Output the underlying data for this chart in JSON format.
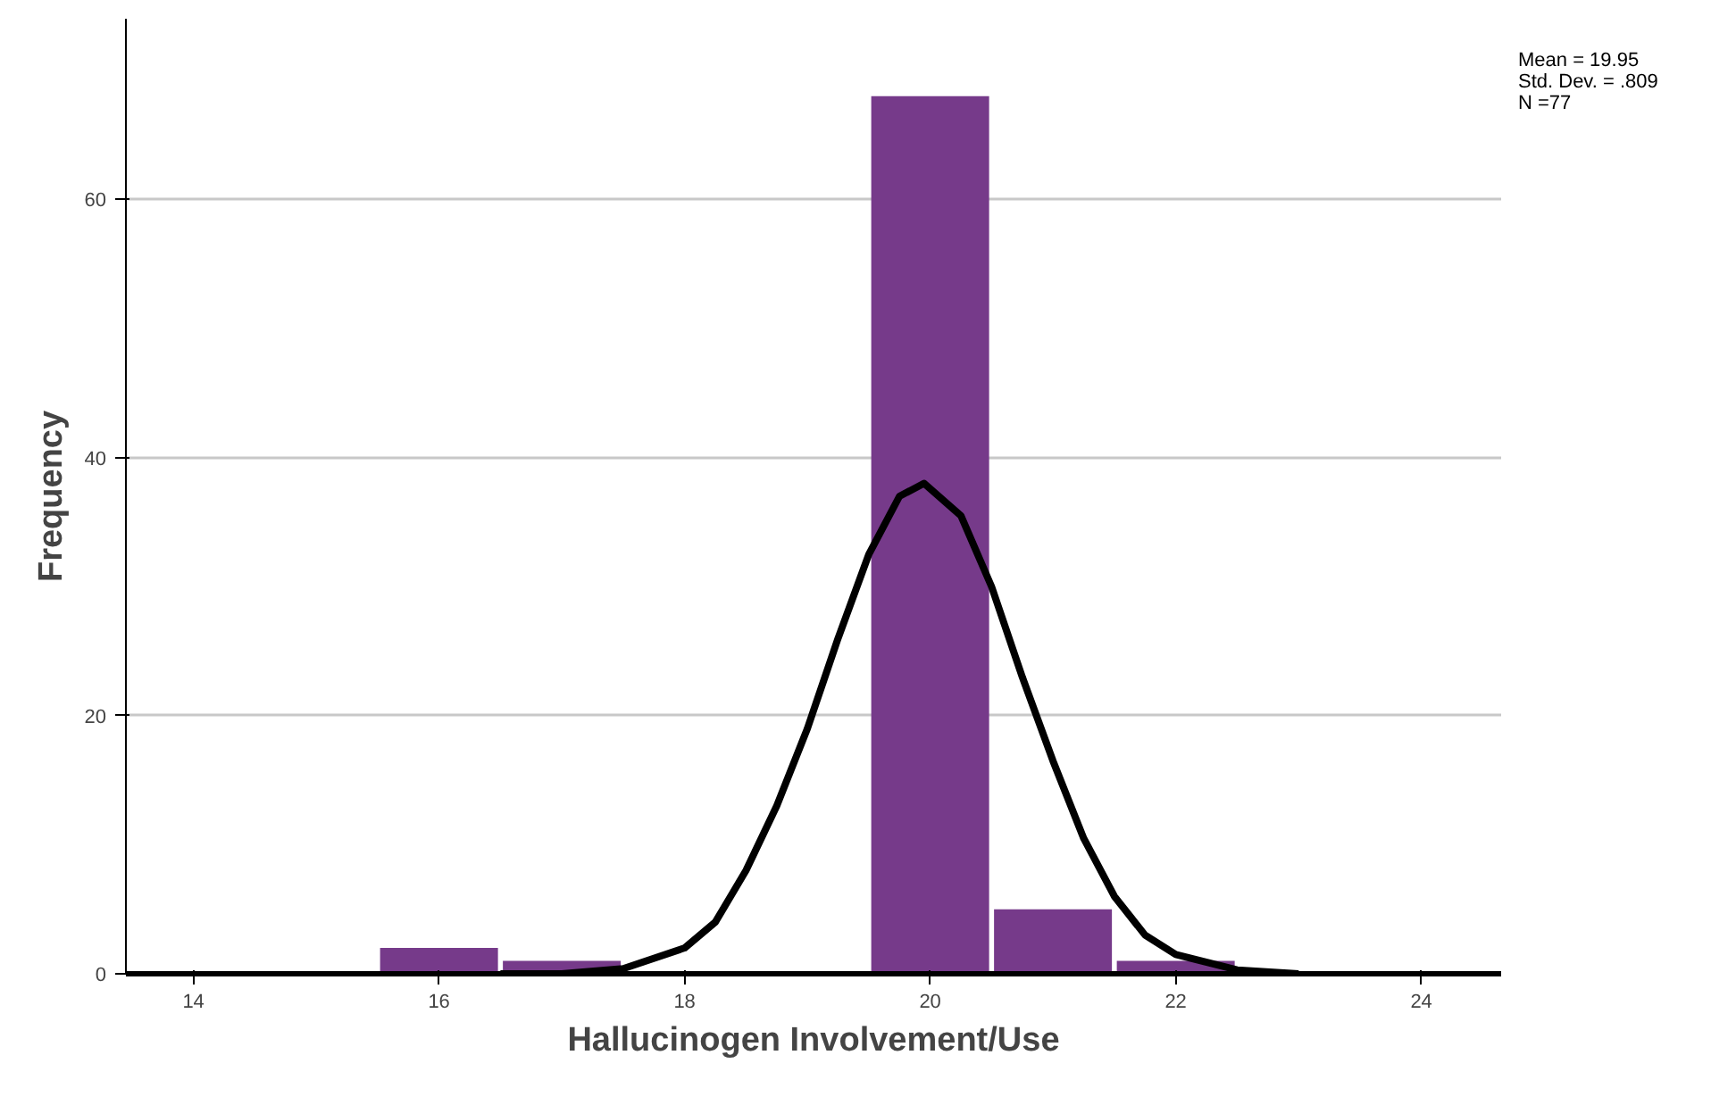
{
  "chart_data": {
    "type": "histogram",
    "xlabel": "Hallucinogen Involvement/Use",
    "ylabel": "Frequency",
    "bins": [
      15.5,
      16.5,
      17.5,
      18.5,
      19.5,
      20.5,
      21.5,
      22.5
    ],
    "values": [
      2,
      1,
      0,
      0,
      68,
      5,
      1
    ],
    "color": "#763a8a",
    "series": [
      {
        "type": "line",
        "color": "#000000",
        "x": [
          16.5,
          17,
          17.5,
          18,
          18.25,
          18.5,
          18.75,
          19,
          19.25,
          19.5,
          19.75,
          19.95,
          20.25,
          20.5,
          20.75,
          21,
          21.25,
          21.5,
          21.75,
          22,
          22.5,
          23
        ],
        "values": [
          0,
          0,
          0.4,
          2,
          4,
          8,
          13,
          19,
          26,
          32.5,
          37,
          38,
          35.5,
          30,
          23,
          16.5,
          10.5,
          6,
          3,
          1.5,
          0.3,
          0
        ]
      }
    ],
    "xlim": [
      13.45,
      24.65
    ],
    "ylim": [
      0,
      74
    ],
    "xticks": [
      14,
      16,
      18,
      20,
      22,
      24
    ],
    "yticks": [
      0,
      20,
      40,
      60
    ],
    "grid": "y",
    "annotations": [
      "Mean = 19.95",
      "Std. Dev. = .809",
      "N =77"
    ]
  }
}
